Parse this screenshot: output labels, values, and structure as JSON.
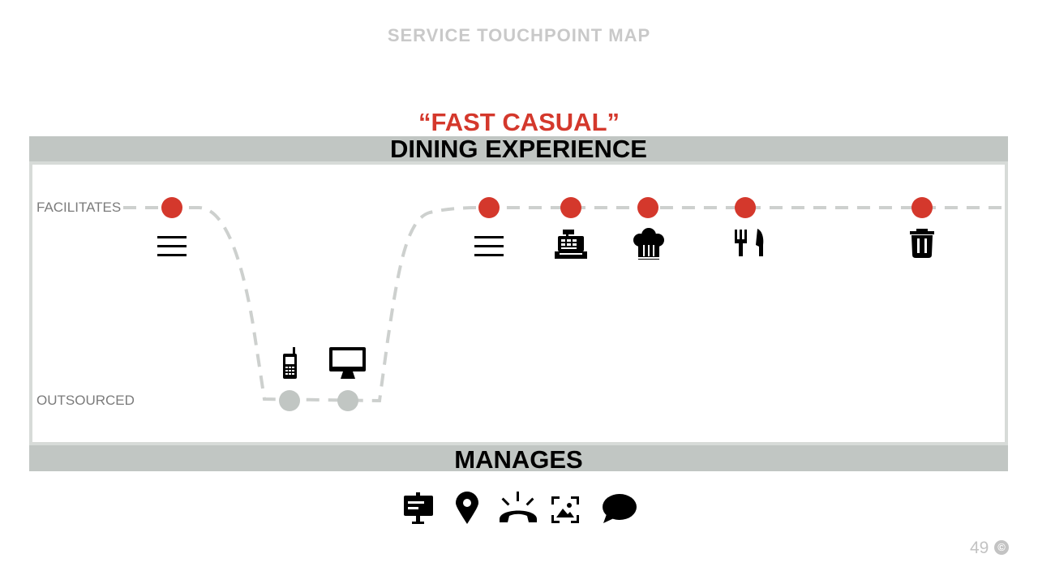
{
  "header": {
    "title": "SERVICE TOUCHPOINT MAP"
  },
  "subtitle": "“FAST CASUAL”",
  "bands": {
    "top": "DINING EXPERIENCE",
    "bottom": "MANAGES"
  },
  "rows": {
    "top": "FACILITATES",
    "bottom": "OUTSOURCED"
  },
  "touchpoints_facilitates": [
    {
      "icon": "menu-icon"
    },
    {
      "icon": "menu-icon"
    },
    {
      "icon": "cash-register-icon"
    },
    {
      "icon": "chef-hat-icon"
    },
    {
      "icon": "fork-knife-icon"
    },
    {
      "icon": "trash-can-icon"
    }
  ],
  "touchpoints_outsourced": [
    {
      "icon": "mobile-phone-icon"
    },
    {
      "icon": "computer-monitor-icon"
    }
  ],
  "manages_icons": [
    "signboard-icon",
    "map-pin-icon",
    "phone-ringing-icon",
    "photo-frame-icon",
    "speech-bubble-icon"
  ],
  "colors": {
    "active": "#d4382c",
    "outsourced": "#c1c6c3",
    "band": "#c1c6c3",
    "title": "#c9c9c9"
  },
  "footer": {
    "page_number": "49",
    "copyright_symbol": "©"
  }
}
